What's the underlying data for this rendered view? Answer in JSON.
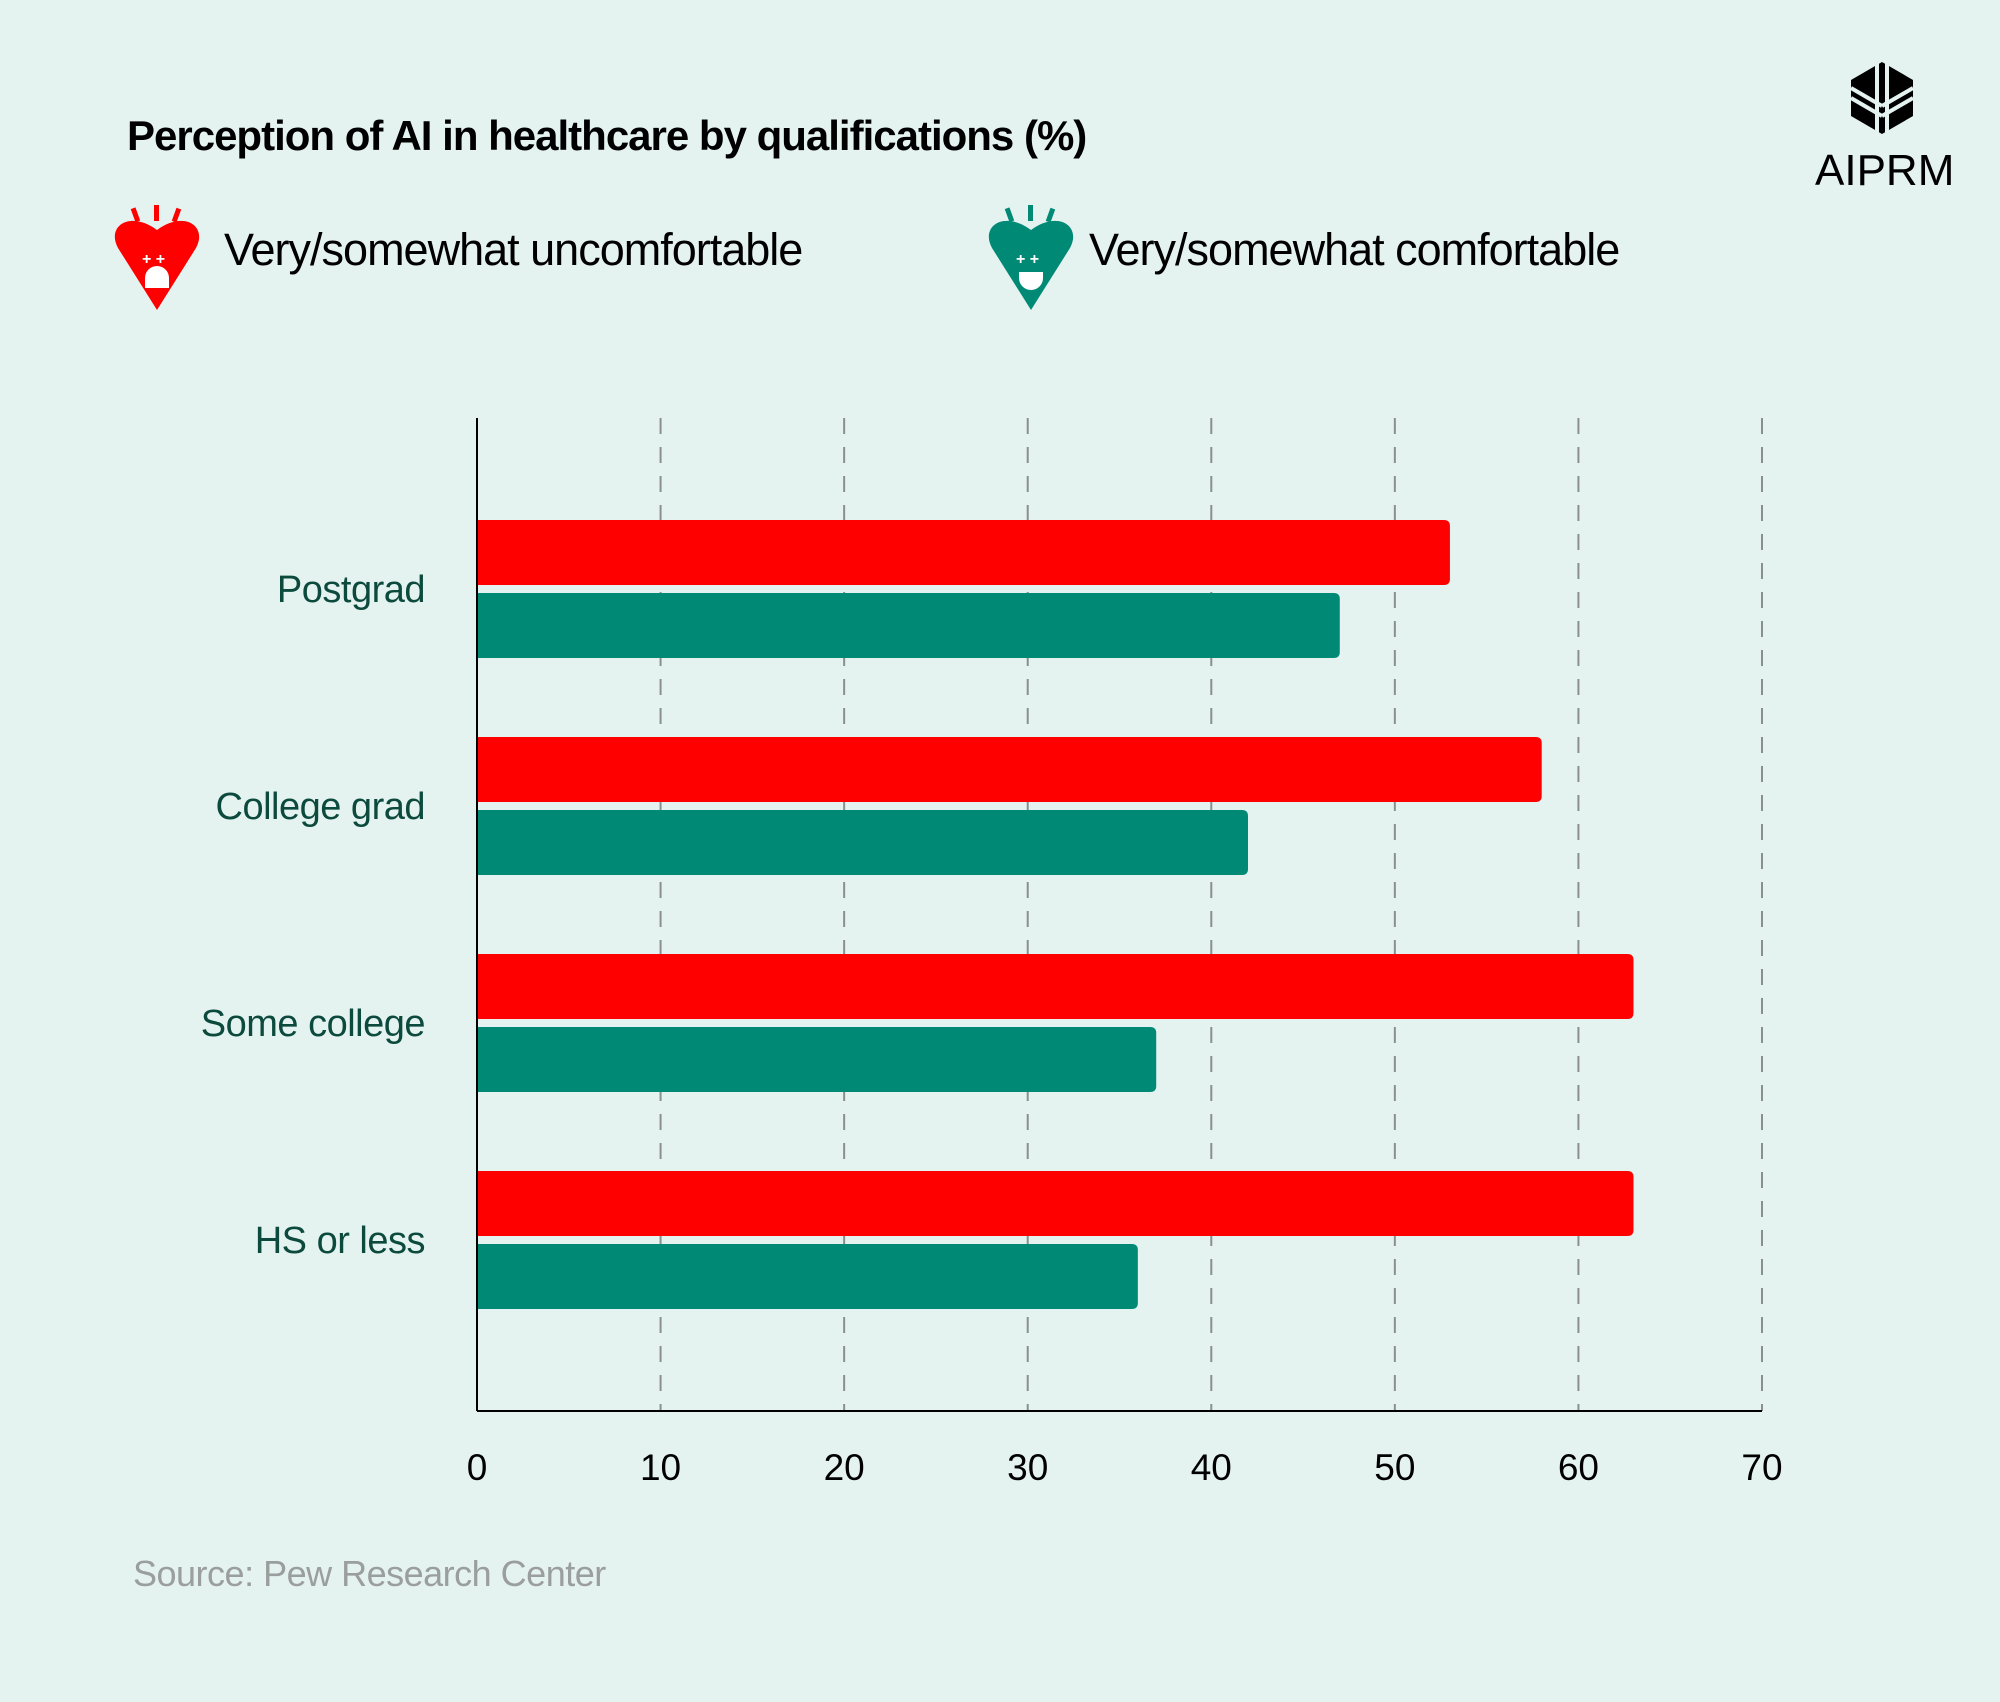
{
  "title": "Perception of AI in healthcare by qualifications (%)",
  "logo": {
    "text": "AIPRM",
    "icon": "aiprm-hexagon-logo"
  },
  "legend": [
    {
      "label": "Very/somewhat uncomfortable",
      "color": "#ff0000",
      "icon": "sad-heart-icon"
    },
    {
      "label": "Very/somewhat comfortable",
      "color": "#008a76",
      "icon": "happy-heart-icon"
    }
  ],
  "source": "Source:  Pew Research Center",
  "chart_data": {
    "type": "bar",
    "orientation": "horizontal",
    "title": "Perception of AI in healthcare by qualifications (%)",
    "categories": [
      "Postgrad",
      "College grad",
      "Some college",
      "HS or less"
    ],
    "series": [
      {
        "name": "Very/somewhat uncomfortable",
        "color": "#ff0000",
        "values": [
          53,
          58,
          63,
          63
        ]
      },
      {
        "name": "Very/somewhat comfortable",
        "color": "#008a76",
        "values": [
          47,
          42,
          37,
          36
        ]
      }
    ],
    "xlim": [
      0,
      70
    ],
    "xticks": [
      "0",
      "10",
      "20",
      "30",
      "40",
      "50",
      "60",
      "70"
    ],
    "grid": "vertical dashed",
    "legend_position": "top-left"
  }
}
